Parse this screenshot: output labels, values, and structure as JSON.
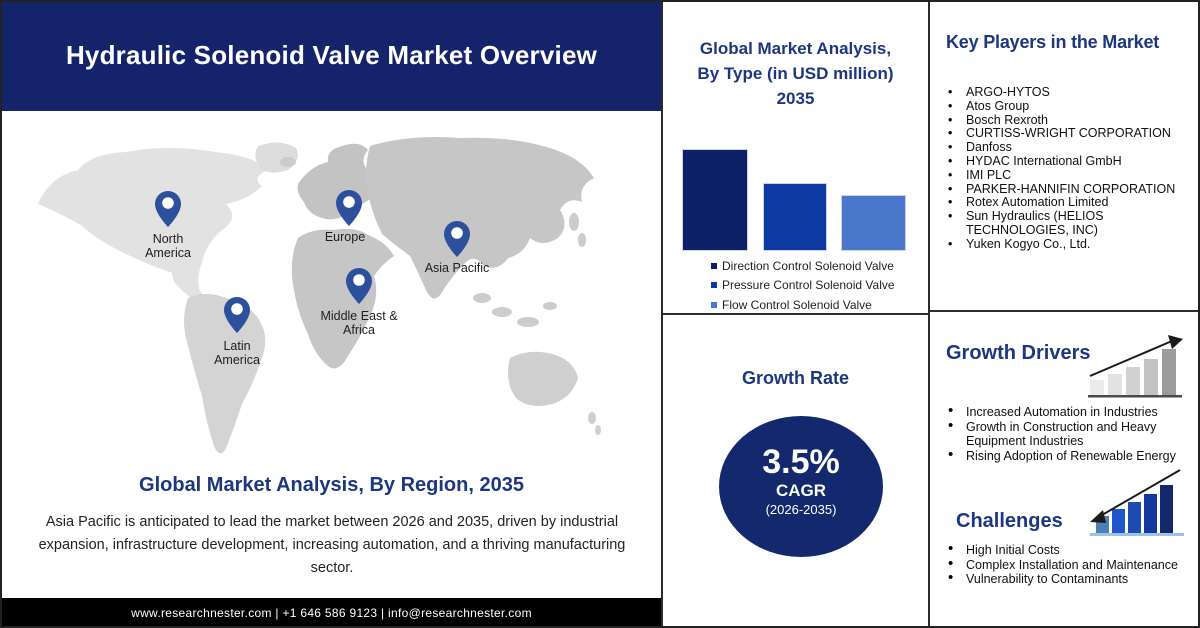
{
  "header": {
    "title": "Hydraulic Solenoid Valve Market Overview"
  },
  "map": {
    "regions": [
      {
        "label": "North America"
      },
      {
        "label": "Europe"
      },
      {
        "label": "Asia Pacific"
      },
      {
        "label": "Middle East & Africa"
      },
      {
        "label": "Latin America"
      }
    ],
    "caption": "Global Market Analysis, By Region, 2035",
    "description": "Asia Pacific is anticipated to lead the market between 2026 and 2035, driven by industrial expansion, infrastructure development, increasing automation, and a thriving manufacturing sector."
  },
  "footer": {
    "text": "www.researchnester.com | +1 646 586 9123 | info@researchnester.com"
  },
  "chart_data": {
    "type": "bar",
    "title": "Global Market Analysis, By Type (in USD million) 2035",
    "title_lines": [
      "Global Market Analysis,",
      "By Type (in USD million)",
      "2035"
    ],
    "categories": [
      "Direction Control Solenoid Valve",
      "Pressure Control Solenoid Valve",
      "Flow Control Solenoid Valve"
    ],
    "values": [
      102,
      68,
      56
    ],
    "value_note": "bars carry no numeric labels; values are relative magnitudes estimated from bar heights",
    "colors": [
      "#0d2066",
      "#0c3aa2",
      "#4a77c9"
    ],
    "xlabel": "",
    "ylabel": "",
    "grid": false,
    "legend_position": "bottom-left"
  },
  "growth_rate": {
    "heading": "Growth Rate",
    "value": "3.5%",
    "metric": "CAGR",
    "period": "(2026-2035)"
  },
  "key_players": {
    "title": "Key Players in the Market",
    "items": [
      "ARGO-HYTOS",
      "Atos Group",
      "Bosch Rexroth",
      "CURTISS-WRIGHT CORPORATION",
      "Danfoss",
      "HYDAC International GmbH",
      "IMI PLC",
      "PARKER-HANNIFIN CORPORATION",
      "Rotex Automation Limited",
      "Sun Hydraulics (HELIOS TECHNOLOGIES, INC)",
      "Yuken Kogyo Co., Ltd."
    ]
  },
  "growth_drivers": {
    "title": "Growth Drivers",
    "items": [
      "Increased Automation in Industries",
      "Growth in Construction and Heavy Equipment Industries",
      "Rising Adoption of Renewable Energy"
    ]
  },
  "challenges": {
    "title": "Challenges",
    "items": [
      "High Initial Costs",
      "Complex Installation and Maintenance",
      "Vulnerability to Contaminants"
    ]
  },
  "colors": {
    "banner_navy": "#15236b",
    "heading_navy": "#1c3680",
    "circle_navy": "#14296d",
    "pin_blue": "#2d509d",
    "footer_black": "#000000"
  }
}
